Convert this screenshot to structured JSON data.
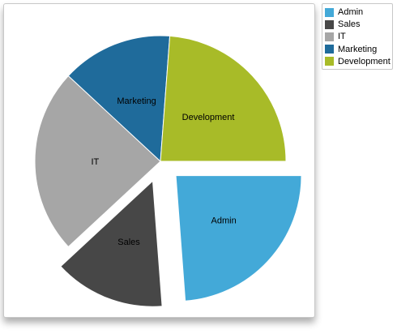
{
  "chart_data": {
    "type": "pie",
    "categories": [
      "Admin",
      "Sales",
      "IT",
      "Marketing",
      "Development"
    ],
    "values": [
      25,
      15,
      25,
      15,
      25
    ],
    "colors": [
      "#43a9d8",
      "#474747",
      "#a6a6a6",
      "#1f6b9b",
      "#a8bb28"
    ],
    "exploded": [
      "Admin",
      "Sales"
    ],
    "legend_position": "top-right",
    "title": "",
    "xlabel": "",
    "ylabel": ""
  }
}
